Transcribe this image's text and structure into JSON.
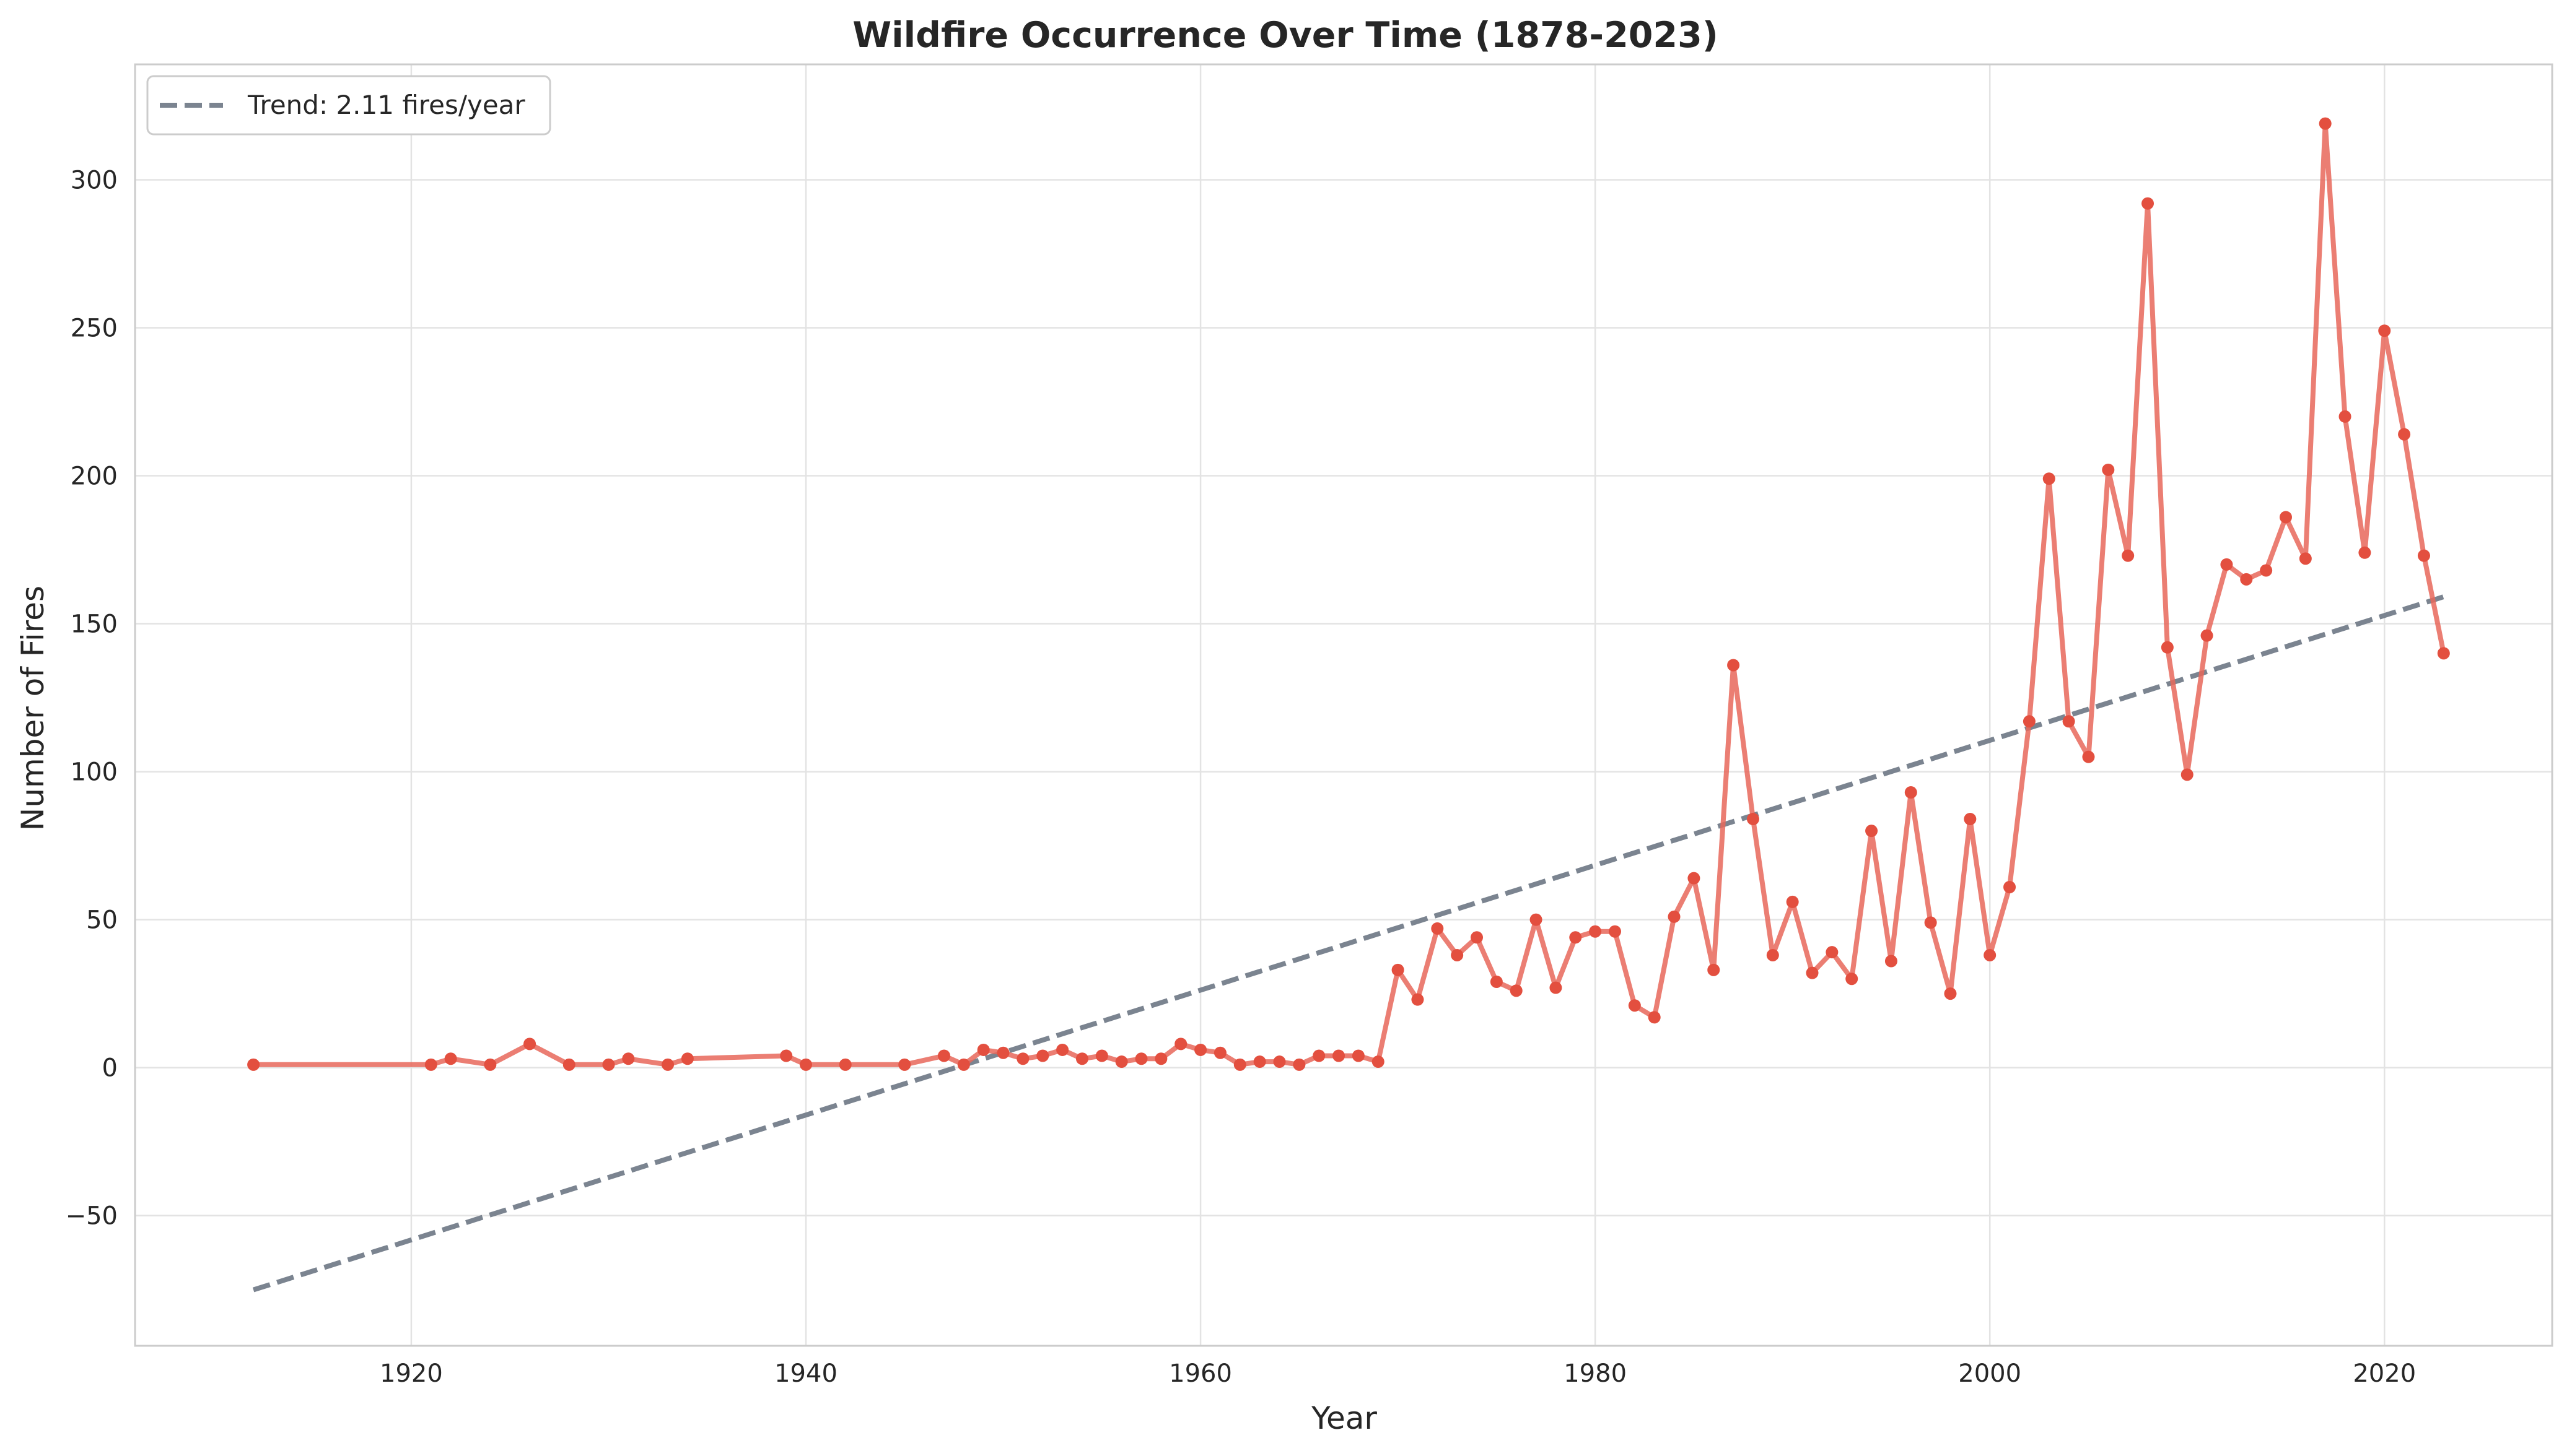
{
  "chart_data": {
    "type": "line",
    "title": "Wildfire Occurrence Over Time (1878-2023)",
    "xlabel": "Year",
    "ylabel": "Number of Fires",
    "xlim": [
      1906,
      2028.5
    ],
    "ylim": [
      -94,
      339
    ],
    "xticks": [
      1920,
      1940,
      1960,
      1980,
      2000,
      2020
    ],
    "yticks": [
      -50,
      0,
      50,
      100,
      150,
      200,
      250,
      300
    ],
    "ytick_labels": [
      "−50",
      "0",
      "50",
      "100",
      "150",
      "200",
      "250",
      "300"
    ],
    "grid": true,
    "legend_position": "top-left",
    "colors": {
      "series": "#e8675a",
      "trend": "#7b8490",
      "grid": "#e3e3e3",
      "frame": "#cccccc"
    },
    "series": [
      {
        "name": "",
        "x": [
          1912,
          1921,
          1922,
          1924,
          1926,
          1928,
          1930,
          1931,
          1933,
          1934,
          1939,
          1940,
          1942,
          1945,
          1947,
          1948,
          1949,
          1950,
          1951,
          1952,
          1953,
          1954,
          1955,
          1956,
          1957,
          1958,
          1959,
          1960,
          1961,
          1962,
          1963,
          1964,
          1965,
          1966,
          1967,
          1968,
          1969,
          1970,
          1971,
          1972,
          1973,
          1974,
          1975,
          1976,
          1977,
          1978,
          1979,
          1980,
          1981,
          1982,
          1983,
          1984,
          1985,
          1986,
          1987,
          1988,
          1989,
          1990,
          1991,
          1992,
          1993,
          1994,
          1995,
          1996,
          1997,
          1998,
          1999,
          2000,
          2001,
          2002,
          2003,
          2004,
          2005,
          2006,
          2007,
          2008,
          2009,
          2010,
          2011,
          2012,
          2013,
          2014,
          2015,
          2016,
          2017,
          2018,
          2019,
          2020,
          2021,
          2022,
          2023
        ],
        "values": [
          1,
          1,
          3,
          1,
          8,
          1,
          1,
          3,
          1,
          3,
          4,
          1,
          1,
          1,
          4,
          1,
          6,
          5,
          3,
          4,
          6,
          3,
          4,
          2,
          3,
          3,
          8,
          6,
          5,
          1,
          2,
          2,
          1,
          4,
          4,
          4,
          2,
          33,
          23,
          47,
          38,
          44,
          29,
          26,
          50,
          27,
          44,
          46,
          46,
          21,
          17,
          51,
          64,
          33,
          136,
          84,
          38,
          56,
          32,
          39,
          30,
          80,
          36,
          93,
          49,
          25,
          84,
          38,
          61,
          117,
          199,
          117,
          105,
          202,
          173,
          292,
          142,
          99,
          146,
          170,
          165,
          168,
          186,
          172,
          319,
          220,
          174,
          249,
          214,
          173,
          140
        ]
      },
      {
        "name": "Trend: 2.11 fires/year",
        "x": [
          1912,
          2023
        ],
        "values": [
          -75.1,
          159.1
        ]
      }
    ]
  }
}
